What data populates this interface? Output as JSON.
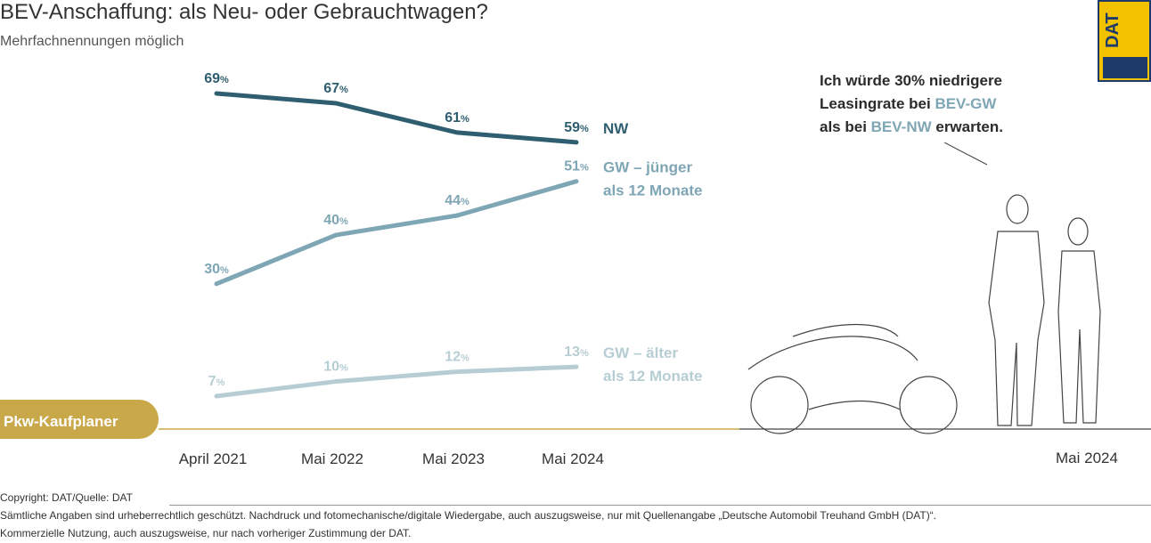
{
  "title": "BEV-Anschaffung: als Neu- oder Gebrauchtwagen?",
  "subtitle": "Mehrfachnennungen möglich",
  "logo": {
    "text": "DAT"
  },
  "badge": "Pkw-Kaufplaner",
  "quote": {
    "line1": "Ich würde 30% niedrigere",
    "line2_pre": "Leasingrate bei ",
    "line2_hl": "BEV-GW",
    "line3_pre": "als bei ",
    "line3_hl": "BEV-NW",
    "line3_post": " erwarten."
  },
  "illustration_date": "Mai 2024",
  "footer": {
    "copyright": "Copyright: DAT/Quelle: DAT",
    "rights1": "Sämtliche Angaben sind urheberrechtlich geschützt. Nachdruck und fotomechanische/digitale Wiedergabe, auch auszugsweise, nur mit Quellenangabe „Deutsche Automobil Treuhand GmbH (DAT)“.",
    "rights2": "Kommerzielle Nutzung, auch auszugsweise, nur nach vorheriger Zustimmung der DAT."
  },
  "colors": {
    "nw": "#2f5e70",
    "gw_young": "#7fa6b4",
    "gw_old": "#b7cdd4",
    "accent": "#c9a84a"
  },
  "chart_data": {
    "type": "line",
    "title": "BEV-Anschaffung: als Neu- oder Gebrauchtwagen?",
    "categories": [
      "April 2021",
      "Mai 2022",
      "Mai 2023",
      "Mai 2024"
    ],
    "unit": "%",
    "series": [
      {
        "name": "NW",
        "label_lines": [
          "NW"
        ],
        "values": [
          69,
          67,
          61,
          59
        ]
      },
      {
        "name": "GW – jünger als 12 Monate",
        "label_lines": [
          "GW – jünger",
          "als 12 Monate"
        ],
        "values": [
          30,
          40,
          44,
          51
        ]
      },
      {
        "name": "GW – älter als 12 Monate",
        "label_lines": [
          "GW – älter",
          "als 12 Monate"
        ],
        "values": [
          7,
          10,
          12,
          13
        ]
      }
    ],
    "xlabel": "",
    "ylabel": "",
    "ylim": [
      0,
      75
    ],
    "grid": false,
    "legend": "right-of-lines"
  }
}
